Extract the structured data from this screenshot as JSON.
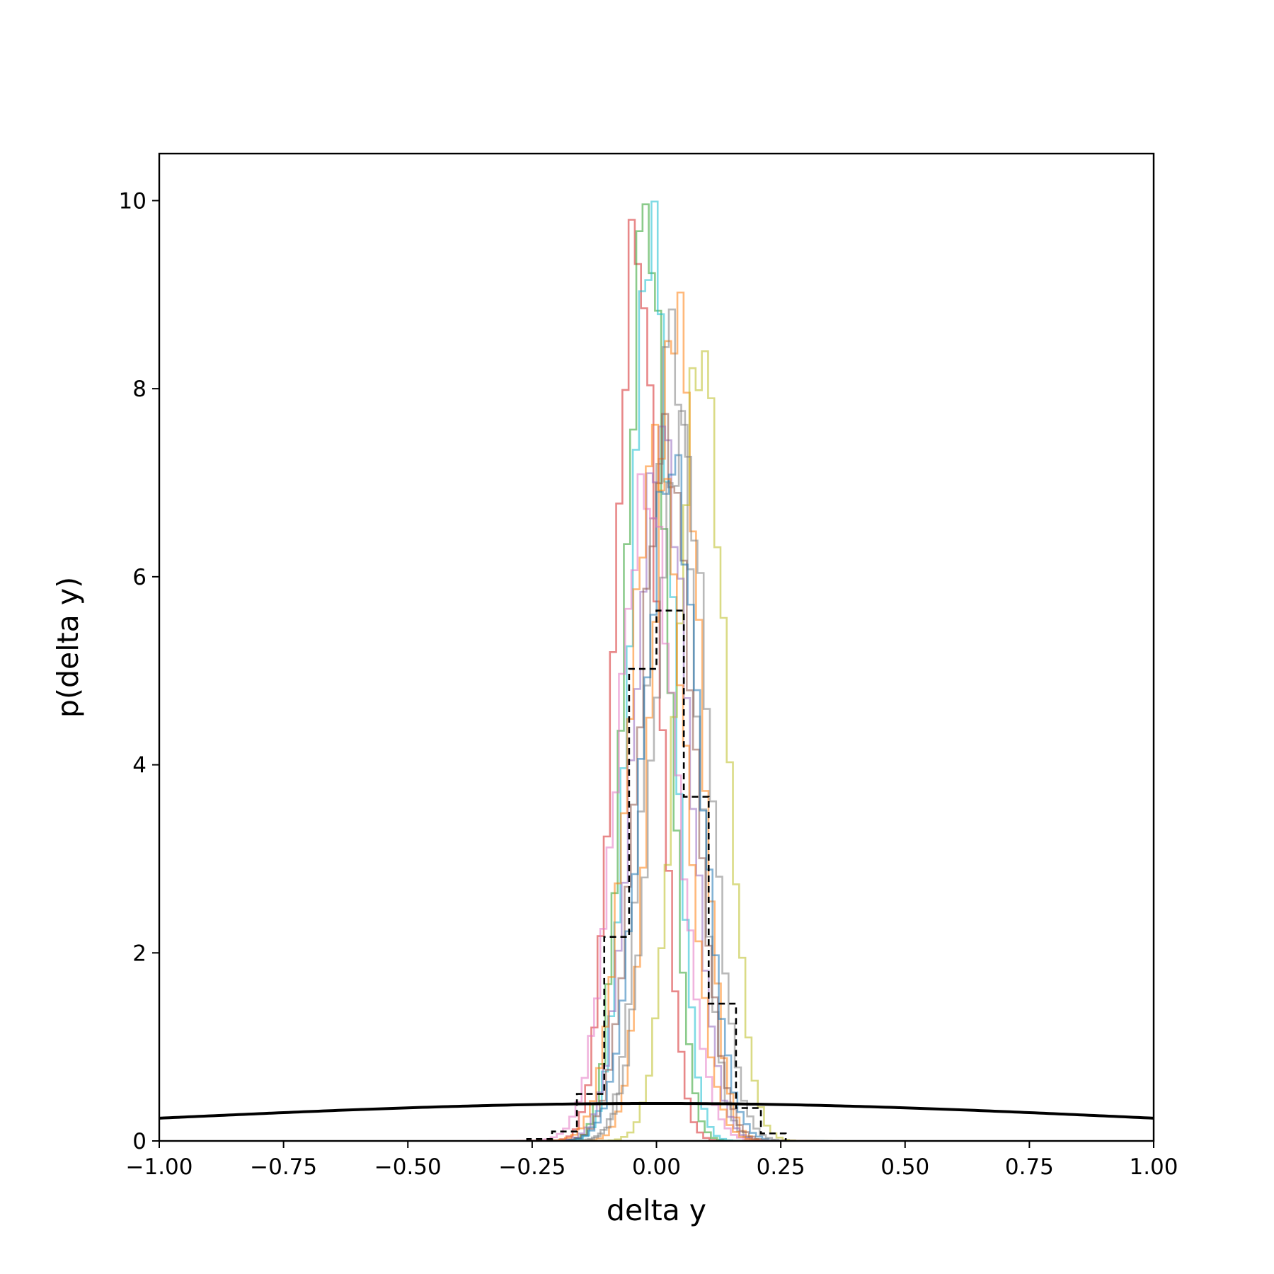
{
  "chart_data": {
    "type": "histogram",
    "title": "",
    "xlabel": "delta y",
    "ylabel": "p(delta y)",
    "xlim": [
      -1.0,
      1.0
    ],
    "ylim": [
      0,
      10.5
    ],
    "x_ticks": [
      "−1.00",
      "−0.75",
      "−0.50",
      "−0.25",
      "0.00",
      "0.25",
      "0.50",
      "0.75",
      "1.00"
    ],
    "x_tick_values": [
      -1.0,
      -0.75,
      -0.5,
      -0.25,
      0.0,
      0.25,
      0.5,
      0.75,
      1.0
    ],
    "y_ticks": [
      "0",
      "2",
      "4",
      "6",
      "8",
      "10"
    ],
    "y_tick_values": [
      0,
      2,
      4,
      6,
      8,
      10
    ],
    "grid": false,
    "legend": "none",
    "series": [
      {
        "color": "#d62728",
        "mean": -0.04,
        "peak": 9.6,
        "bin_width": 0.0125,
        "style": "step-translucent"
      },
      {
        "color": "#2ca02c",
        "mean": -0.02,
        "peak": 9.95,
        "bin_width": 0.0125,
        "style": "step-translucent"
      },
      {
        "color": "#17becf",
        "mean": -0.01,
        "peak": 9.75,
        "bin_width": 0.0125,
        "style": "step-translucent"
      },
      {
        "color": "#ff7f0e",
        "mean": 0.04,
        "peak": 8.85,
        "bin_width": 0.0125,
        "style": "step-translucent"
      },
      {
        "color": "#7f7f7f",
        "mean": 0.03,
        "peak": 8.6,
        "bin_width": 0.0125,
        "style": "step-translucent"
      },
      {
        "color": "#bcbd22",
        "mean": 0.09,
        "peak": 8.4,
        "bin_width": 0.0125,
        "style": "step-translucent"
      },
      {
        "color": "#9467bd",
        "mean": 0.01,
        "peak": 7.5,
        "bin_width": 0.0125,
        "style": "step-translucent"
      },
      {
        "color": "#8c564b",
        "mean": 0.02,
        "peak": 7.4,
        "bin_width": 0.0125,
        "style": "step-translucent"
      },
      {
        "color": "#1f77b4",
        "mean": 0.03,
        "peak": 7.2,
        "bin_width": 0.0125,
        "style": "step-translucent"
      },
      {
        "color": "#e377c2",
        "mean": -0.02,
        "peak": 6.9,
        "bin_width": 0.0125,
        "style": "step-translucent"
      },
      {
        "color": "#7f7f7f",
        "mean": 0.05,
        "peak": 7.5,
        "bin_width": 0.0125,
        "style": "step-translucent"
      },
      {
        "color": "#ff7f0e",
        "mean": 0.0,
        "peak": 7.4,
        "bin_width": 0.0125,
        "style": "step-translucent"
      }
    ],
    "aggregate_histogram": {
      "style": "dashed",
      "color": "#000000",
      "bin_edges": [
        -0.26,
        -0.21,
        -0.16,
        -0.105,
        -0.055,
        0.0,
        0.055,
        0.105,
        0.16,
        0.21,
        0.26
      ],
      "values": [
        0.02,
        0.1,
        0.5,
        2.17,
        5.02,
        5.64,
        3.66,
        1.46,
        0.35,
        0.08
      ]
    },
    "reference_curve": {
      "type": "normal_pdf",
      "mean": 0.0,
      "std": 1.0,
      "color": "#000000"
    }
  }
}
